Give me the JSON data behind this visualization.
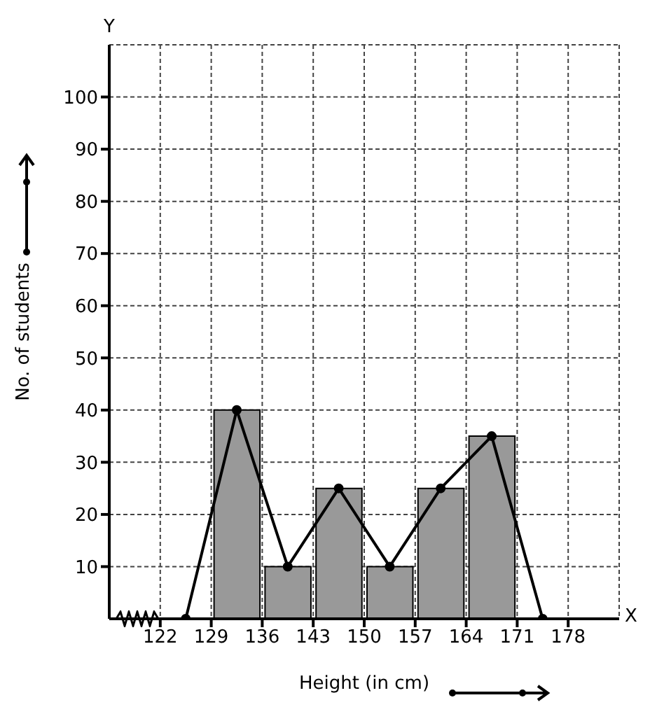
{
  "chart_data": {
    "type": "histogram",
    "xlabel": "Height (in cm)",
    "ylabel": "No. of students",
    "bins": [
      129,
      136,
      143,
      150,
      157,
      164,
      171
    ],
    "values": [
      40,
      10,
      25,
      10,
      25,
      35
    ],
    "color": "#999999",
    "series": [
      {
        "type": "line",
        "x": [
          125.5,
          132.5,
          139.5,
          146.5,
          153.5,
          160.5,
          167.5,
          174.5
        ],
        "values": [
          0,
          40,
          10,
          25,
          10,
          25,
          35,
          0
        ],
        "color": "#000000"
      }
    ],
    "xlim": [
      115,
      185
    ],
    "xticks": [
      122,
      129,
      136,
      143,
      150,
      157,
      164,
      171,
      178
    ],
    "ylim": [
      0,
      110
    ],
    "yticks": [
      10,
      20,
      30,
      40,
      50,
      60,
      70,
      80,
      90,
      100
    ],
    "grid": true,
    "marker": "circle",
    "line_style": "solid",
    "annotations": [
      "X",
      "Y"
    ]
  }
}
